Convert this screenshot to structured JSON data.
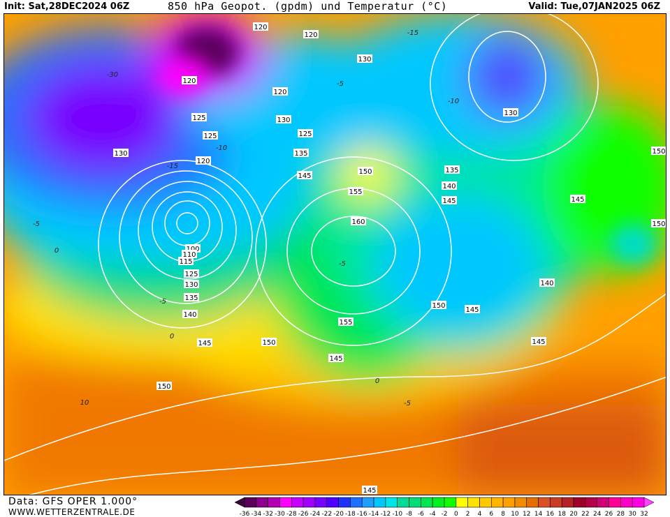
{
  "header": {
    "init": "Init: Sat,28DEC2024 06Z",
    "title": "850 hPa Geopot. (gpdm) und Temperatur (°C)",
    "valid": "Valid: Tue,07JAN2025 06Z"
  },
  "footer": {
    "data_source": "Data: GFS OPER 1.000°",
    "website": "WWW.WETTERZENTRALE.DE"
  },
  "legend": {
    "labels": [
      "-36",
      "-34",
      "-32",
      "-30",
      "-28",
      "-26",
      "-24",
      "-22",
      "-20",
      "-18",
      "-16",
      "-14",
      "-12",
      "-10",
      "-8",
      "-6",
      "-4",
      "-2",
      "0",
      "2",
      "4",
      "6",
      "8",
      "10",
      "12",
      "14",
      "16",
      "18",
      "20",
      "22",
      "24",
      "26",
      "28",
      "30",
      "32"
    ],
    "colors": [
      "#5a005a",
      "#8c008c",
      "#b400b4",
      "#ff00ff",
      "#c800ff",
      "#a000ff",
      "#7800ff",
      "#5000ff",
      "#1e32ff",
      "#1e6eff",
      "#1ea0ff",
      "#00c8ff",
      "#00e6e6",
      "#00dc96",
      "#00dc78",
      "#00e650",
      "#00f020",
      "#10ff00",
      "#ffff00",
      "#ffe100",
      "#ffc800",
      "#ffb400",
      "#ffa000",
      "#f08c00",
      "#e66e00",
      "#dc5020",
      "#c83c28",
      "#b42323",
      "#a00028",
      "#b40046",
      "#d20078",
      "#ff0096",
      "#ff00c8",
      "#ff00e6"
    ],
    "left_arrow_color": "#3c003c",
    "right_arrow_color": "#ff40ff"
  },
  "geopotential_labels": [
    "120",
    "120",
    "130",
    "120",
    "120",
    "130",
    "125",
    "130",
    "125",
    "125",
    "130",
    "135",
    "120",
    "150",
    "135",
    "145",
    "155",
    "140",
    "145",
    "145",
    "150",
    "150",
    "160",
    "100",
    "110",
    "115",
    "125",
    "130",
    "135",
    "140",
    "140",
    "150",
    "145",
    "155",
    "145",
    "150",
    "145",
    "145",
    "150",
    "145"
  ],
  "temperature_labels": [
    "-15",
    "-5",
    "-10",
    "-30",
    "-15",
    "-10",
    "-5",
    "0",
    "-5",
    "0",
    "-5",
    "0",
    "-5",
    "10"
  ]
}
